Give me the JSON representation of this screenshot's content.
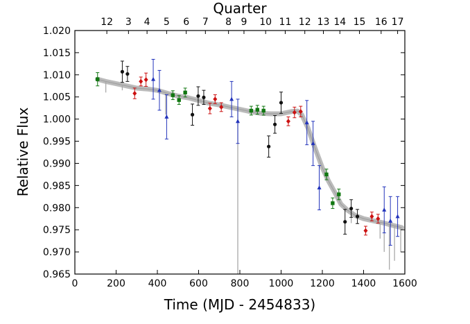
{
  "chart_data": {
    "type": "scatter",
    "xlabel": "Time (MJD - 2454833)",
    "ylabel": "Relative Flux",
    "top_axis_title": "Quarter",
    "xlim": [
      0,
      1600
    ],
    "ylim": [
      0.965,
      1.02
    ],
    "x_ticks": [
      0,
      200,
      400,
      600,
      800,
      1000,
      1200,
      1400,
      1600
    ],
    "x_tick_labels": [
      "0",
      "200",
      "400",
      "600",
      "800",
      "1000",
      "1200",
      "1400",
      "1600"
    ],
    "y_ticks": [
      0.965,
      0.97,
      0.975,
      0.98,
      0.985,
      0.99,
      0.995,
      1.0,
      1.005,
      1.01,
      1.015,
      1.02
    ],
    "y_tick_labels": [
      "0.965",
      "0.970",
      "0.975",
      "0.980",
      "0.985",
      "0.990",
      "0.995",
      "1.000",
      "1.005",
      "1.010",
      "1.015",
      "1.020"
    ],
    "quarters": [
      {
        "label": "12",
        "x": 155
      },
      {
        "label": "3",
        "x": 260
      },
      {
        "label": "4",
        "x": 350
      },
      {
        "label": "5",
        "x": 445
      },
      {
        "label": "6",
        "x": 540
      },
      {
        "label": "7",
        "x": 633
      },
      {
        "label": "8",
        "x": 745
      },
      {
        "label": "9",
        "x": 820
      },
      {
        "label": "10",
        "x": 925
      },
      {
        "label": "11",
        "x": 1020
      },
      {
        "label": "12",
        "x": 1115
      },
      {
        "label": "13",
        "x": 1205
      },
      {
        "label": "14",
        "x": 1285
      },
      {
        "label": "15",
        "x": 1380
      },
      {
        "label": "16",
        "x": 1485
      },
      {
        "label": "17",
        "x": 1565
      }
    ],
    "colors": {
      "lightcurve": "#b4b4b4",
      "black": "#111111",
      "red": "#cc1111",
      "blue": "#2233bb",
      "green": "#117711"
    },
    "lightcurve": [
      [
        110,
        1.009
      ],
      [
        150,
        1.0085
      ],
      [
        200,
        1.008
      ],
      [
        250,
        1.0075
      ],
      [
        300,
        1.007
      ],
      [
        350,
        1.0068
      ],
      [
        400,
        1.0065
      ],
      [
        450,
        1.0058
      ],
      [
        500,
        1.0052
      ],
      [
        550,
        1.0048
      ],
      [
        600,
        1.0042
      ],
      [
        650,
        1.0036
      ],
      [
        700,
        1.0032
      ],
      [
        750,
        1.0027
      ],
      [
        800,
        1.0022
      ],
      [
        850,
        1.0017
      ],
      [
        900,
        1.0013
      ],
      [
        950,
        1.0012
      ],
      [
        1000,
        1.0012
      ],
      [
        1050,
        1.0017
      ],
      [
        1080,
        1.0018
      ],
      [
        1100,
        1.001
      ],
      [
        1130,
        0.998
      ],
      [
        1160,
        0.994
      ],
      [
        1200,
        0.989
      ],
      [
        1230,
        0.986
      ],
      [
        1260,
        0.9835
      ],
      [
        1290,
        0.9808
      ],
      [
        1320,
        0.9795
      ],
      [
        1360,
        0.9782
      ],
      [
        1400,
        0.9775
      ],
      [
        1450,
        0.977
      ],
      [
        1500,
        0.9765
      ],
      [
        1540,
        0.976
      ],
      [
        1585,
        0.9755
      ]
    ],
    "glitches": [
      {
        "x": 150,
        "y_low": 1.006
      },
      {
        "x": 230,
        "y_low": 1.0065
      },
      {
        "x": 440,
        "y_low": 1.001
      },
      {
        "x": 790,
        "y_low": 0.965
      },
      {
        "x": 1340,
        "y_low": 0.9765
      },
      {
        "x": 1480,
        "y_low": 0.973
      },
      {
        "x": 1500,
        "y_low": 0.97
      },
      {
        "x": 1525,
        "y_low": 0.966
      },
      {
        "x": 1550,
        "y_low": 0.968
      },
      {
        "x": 1580,
        "y_low": 0.97
      }
    ],
    "series": [
      {
        "name": "black",
        "marker": "circle",
        "color": "#111111",
        "points": [
          {
            "x": 230,
            "y": 1.0107,
            "err": 0.0024
          },
          {
            "x": 255,
            "y": 1.0102,
            "err": 0.0017
          },
          {
            "x": 570,
            "y": 1.001,
            "err": 0.0024
          },
          {
            "x": 598,
            "y": 1.0052,
            "err": 0.0021
          },
          {
            "x": 625,
            "y": 1.0049,
            "err": 0.0016
          },
          {
            "x": 940,
            "y": 0.9938,
            "err": 0.0024
          },
          {
            "x": 970,
            "y": 0.9988,
            "err": 0.002
          },
          {
            "x": 1000,
            "y": 1.0037,
            "err": 0.0024
          },
          {
            "x": 1310,
            "y": 0.9768,
            "err": 0.0028
          },
          {
            "x": 1340,
            "y": 0.9798,
            "err": 0.002
          },
          {
            "x": 1370,
            "y": 0.978,
            "err": 0.0016
          }
        ]
      },
      {
        "name": "red",
        "marker": "diamond",
        "color": "#cc1111",
        "points": [
          {
            "x": 290,
            "y": 1.0058,
            "err": 0.0012
          },
          {
            "x": 320,
            "y": 1.0085,
            "err": 0.001
          },
          {
            "x": 345,
            "y": 1.0089,
            "err": 0.0015
          },
          {
            "x": 655,
            "y": 1.0024,
            "err": 0.0012
          },
          {
            "x": 680,
            "y": 1.0045,
            "err": 0.001
          },
          {
            "x": 710,
            "y": 1.0027,
            "err": 0.001
          },
          {
            "x": 1035,
            "y": 0.9995,
            "err": 0.001
          },
          {
            "x": 1065,
            "y": 1.0015,
            "err": 0.0012
          },
          {
            "x": 1095,
            "y": 1.0017,
            "err": 0.0012
          },
          {
            "x": 1410,
            "y": 0.9748,
            "err": 0.001
          },
          {
            "x": 1440,
            "y": 0.978,
            "err": 0.001
          },
          {
            "x": 1470,
            "y": 0.9775,
            "err": 0.001
          }
        ]
      },
      {
        "name": "blue",
        "marker": "triangle",
        "color": "#2233bb",
        "points": [
          {
            "x": 380,
            "y": 1.009,
            "err": 0.0045
          },
          {
            "x": 410,
            "y": 1.0065,
            "err": 0.0045
          },
          {
            "x": 445,
            "y": 1.0005,
            "err": 0.005
          },
          {
            "x": 760,
            "y": 1.0045,
            "err": 0.004
          },
          {
            "x": 790,
            "y": 0.9995,
            "err": 0.005
          },
          {
            "x": 1125,
            "y": 0.9992,
            "err": 0.005
          },
          {
            "x": 1155,
            "y": 0.9945,
            "err": 0.005
          },
          {
            "x": 1185,
            "y": 0.9845,
            "err": 0.005
          },
          {
            "x": 1500,
            "y": 0.9795,
            "err": 0.0052
          },
          {
            "x": 1530,
            "y": 0.977,
            "err": 0.0055
          },
          {
            "x": 1565,
            "y": 0.978,
            "err": 0.0045
          }
        ]
      },
      {
        "name": "green",
        "marker": "square",
        "color": "#117711",
        "points": [
          {
            "x": 110,
            "y": 1.009,
            "err": 0.0015
          },
          {
            "x": 475,
            "y": 1.0054,
            "err": 0.001
          },
          {
            "x": 505,
            "y": 1.0043,
            "err": 0.001
          },
          {
            "x": 535,
            "y": 1.006,
            "err": 0.001
          },
          {
            "x": 855,
            "y": 1.0019,
            "err": 0.001
          },
          {
            "x": 885,
            "y": 1.0021,
            "err": 0.001
          },
          {
            "x": 915,
            "y": 1.0019,
            "err": 0.001
          },
          {
            "x": 1220,
            "y": 0.9875,
            "err": 0.0012
          },
          {
            "x": 1250,
            "y": 0.981,
            "err": 0.0012
          },
          {
            "x": 1280,
            "y": 0.983,
            "err": 0.0012
          }
        ]
      }
    ]
  }
}
